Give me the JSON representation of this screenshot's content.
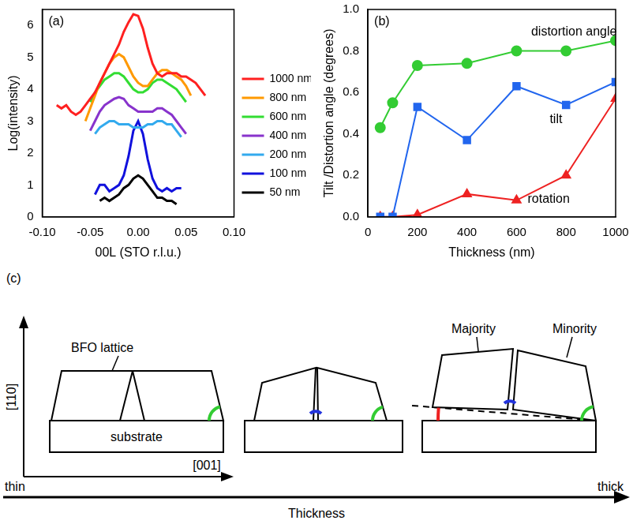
{
  "chart_data": [
    {
      "type": "line",
      "title": "(a)",
      "xlabel": "00L (STO r.l.u.)",
      "ylabel": "Log(intensity)",
      "x": [
        -0.085,
        -0.08,
        -0.075,
        -0.07,
        -0.065,
        -0.06,
        -0.055,
        -0.05,
        -0.045,
        -0.04,
        -0.035,
        -0.03,
        -0.025,
        -0.02,
        -0.015,
        -0.01,
        -0.005,
        0,
        0.005,
        0.01,
        0.015,
        0.02,
        0.025,
        0.03,
        0.035,
        0.04,
        0.045,
        0.05,
        0.055,
        0.06,
        0.065,
        0.07
      ],
      "series": [
        {
          "name": "1000 nm",
          "color": "#ff2020",
          "values": [
            3.5,
            3.4,
            3.5,
            3.3,
            3.2,
            3.3,
            3.5,
            3.7,
            3.9,
            4.2,
            4.5,
            4.8,
            5.1,
            5.4,
            5.8,
            6.1,
            6.35,
            6.3,
            5.9,
            5.3,
            4.8,
            4.5,
            4.4,
            4.5,
            4.5,
            4.5,
            4.4,
            4.4,
            4.3,
            4.2,
            4.0,
            3.8
          ]
        },
        {
          "name": "800 nm",
          "color": "#ff9900",
          "values": [
            null,
            null,
            null,
            null,
            null,
            null,
            3.0,
            3.4,
            3.8,
            4.2,
            4.5,
            4.8,
            5.0,
            5.1,
            5.0,
            4.7,
            4.4,
            4.2,
            4.1,
            4.1,
            4.3,
            4.5,
            4.6,
            4.6,
            4.5,
            4.4,
            4.3,
            4.1,
            3.8,
            null,
            null,
            null
          ]
        },
        {
          "name": "600 nm",
          "color": "#33dd33",
          "values": [
            null,
            null,
            null,
            null,
            null,
            null,
            null,
            3.6,
            3.9,
            4.1,
            4.3,
            4.4,
            4.5,
            4.5,
            4.4,
            4.2,
            4.0,
            3.9,
            3.9,
            4.0,
            4.2,
            4.3,
            4.3,
            4.2,
            4.1,
            4.0,
            3.8,
            3.6,
            null,
            null,
            null,
            null
          ]
        },
        {
          "name": "400 nm",
          "color": "#8833cc",
          "values": [
            null,
            null,
            null,
            null,
            null,
            null,
            null,
            2.7,
            3.0,
            3.3,
            3.5,
            3.6,
            3.7,
            3.75,
            3.7,
            3.5,
            3.4,
            3.3,
            3.3,
            3.3,
            3.3,
            3.4,
            3.4,
            3.3,
            3.2,
            3.0,
            2.8,
            2.6,
            null,
            null,
            null,
            null
          ]
        },
        {
          "name": "200 nm",
          "color": "#33aaee",
          "values": [
            null,
            null,
            null,
            null,
            null,
            null,
            null,
            null,
            2.6,
            2.8,
            2.9,
            3.0,
            3.0,
            2.9,
            2.9,
            2.9,
            2.8,
            2.8,
            2.8,
            2.9,
            2.9,
            3.0,
            3.0,
            2.9,
            2.9,
            2.7,
            2.5,
            null,
            null,
            null,
            null,
            null
          ]
        },
        {
          "name": "100 nm",
          "color": "#1111dd",
          "values": [
            null,
            null,
            null,
            null,
            null,
            null,
            null,
            null,
            0.7,
            1.0,
            1.0,
            0.8,
            0.9,
            1.0,
            1.3,
            1.9,
            2.7,
            3.0,
            2.6,
            1.8,
            1.2,
            0.9,
            0.8,
            0.9,
            0.8,
            0.9,
            0.9,
            null,
            null,
            null,
            null,
            null
          ]
        },
        {
          "name": "50 nm",
          "color": "#000000",
          "values": [
            null,
            null,
            null,
            null,
            null,
            null,
            null,
            null,
            null,
            0.5,
            0.6,
            0.5,
            0.6,
            0.7,
            0.9,
            1.0,
            1.2,
            1.3,
            1.2,
            1.0,
            0.8,
            0.6,
            0.6,
            0.5,
            0.5,
            0.4,
            null,
            null,
            null,
            null,
            null,
            null
          ]
        }
      ],
      "xlim": [
        -0.1,
        0.1
      ],
      "xticks": [
        {
          "value": -0.1,
          "label": "-0.10"
        },
        {
          "value": -0.05,
          "label": "-0.05"
        },
        {
          "value": 0,
          "label": "0.00"
        },
        {
          "value": 0.05,
          "label": "0.05"
        },
        {
          "value": 0.1,
          "label": "0.10"
        }
      ],
      "ylim": [
        0,
        6.5
      ],
      "yticks": [
        0,
        1,
        2,
        3,
        4,
        5,
        6
      ],
      "grid": false,
      "legend": "right",
      "marker": "none",
      "line_style": "solid"
    },
    {
      "type": "line",
      "title": "(b)",
      "xlabel": "Thickness (nm)",
      "ylabel": "Tilt /Distortion angle (degrees)",
      "x": [
        50,
        100,
        200,
        400,
        600,
        800,
        1000
      ],
      "series": [
        {
          "name": "distortion angle",
          "color": "#33cc33",
          "marker": "circle",
          "values": [
            0.43,
            0.55,
            0.73,
            0.74,
            0.8,
            0.8,
            0.85
          ]
        },
        {
          "name": "tilt",
          "color": "#2266ee",
          "marker": "square",
          "values": [
            0,
            0,
            0.53,
            0.37,
            0.63,
            0.54,
            0.65
          ]
        },
        {
          "name": "rotation",
          "color": "#ee2222",
          "marker": "triangle",
          "values": [
            0,
            0,
            0.01,
            0.11,
            0.08,
            0.2,
            0.57
          ]
        }
      ],
      "xlim": [
        0,
        1000
      ],
      "xticks": [
        0,
        200,
        400,
        600,
        800,
        1000
      ],
      "ylim": [
        0,
        1
      ],
      "yticks": [
        {
          "value": 0,
          "label": "0.0"
        },
        0.2,
        0.4,
        0.6,
        0.8,
        {
          "value": 1,
          "label": "1.0"
        }
      ],
      "grid": false,
      "line_style": "solid"
    }
  ],
  "diagram": {
    "panel": "(c)",
    "vertical_axis": "[110]",
    "horizontal_axis": "[001]",
    "lattice_label": "BFO lattice",
    "substrate_label": "substrate",
    "majority_label": "Majority",
    "minority_label": "Minority",
    "thickness_arrow": {
      "start": "thin",
      "end": "thick",
      "label": "Thickness"
    }
  }
}
